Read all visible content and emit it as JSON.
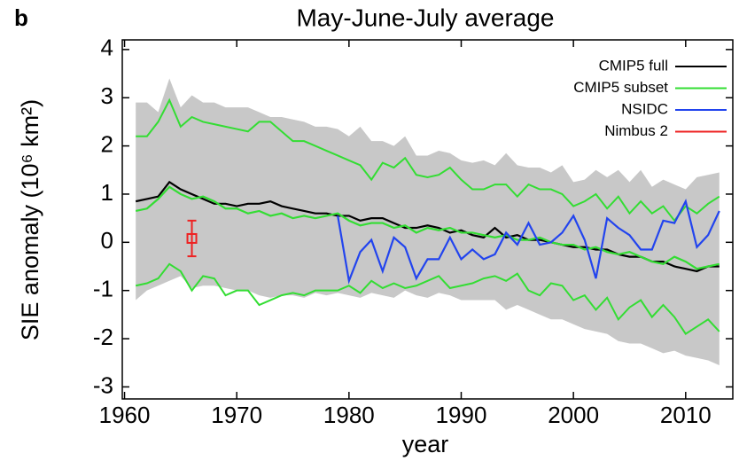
{
  "chart_data": {
    "type": "line",
    "panel_label": "b",
    "title": "May-June-July average",
    "xlabel": "year",
    "ylabel": "SIE anomaly (10⁶ km²)",
    "xlim": [
      1959.8,
      2014.2
    ],
    "ylim": [
      -3.25,
      4.2
    ],
    "xticks": [
      1960,
      1970,
      1980,
      1990,
      2000,
      2010
    ],
    "yticks": [
      -3,
      -2,
      -1,
      0,
      1,
      2,
      3,
      4
    ],
    "legend_position": "upper right",
    "x": [
      1961,
      1962,
      1963,
      1964,
      1965,
      1966,
      1967,
      1968,
      1969,
      1970,
      1971,
      1972,
      1973,
      1974,
      1975,
      1976,
      1977,
      1978,
      1979,
      1980,
      1981,
      1982,
      1983,
      1984,
      1985,
      1986,
      1987,
      1988,
      1989,
      1990,
      1991,
      1992,
      1993,
      1994,
      1995,
      1996,
      1997,
      1998,
      1999,
      2000,
      2001,
      2002,
      2003,
      2004,
      2005,
      2006,
      2007,
      2008,
      2009,
      2010,
      2011,
      2012,
      2013
    ],
    "band": {
      "color": "#c8c8c8",
      "upper": [
        2.9,
        2.9,
        2.7,
        3.4,
        2.8,
        3.05,
        2.9,
        2.9,
        2.8,
        2.8,
        2.8,
        2.7,
        2.6,
        2.6,
        2.55,
        2.5,
        2.4,
        2.4,
        2.35,
        2.2,
        2.4,
        2.1,
        2.1,
        2.0,
        2.2,
        1.8,
        1.8,
        1.9,
        1.85,
        1.7,
        1.65,
        1.7,
        1.6,
        1.85,
        1.6,
        1.55,
        1.55,
        1.45,
        1.6,
        1.25,
        1.3,
        1.5,
        1.35,
        1.5,
        1.25,
        1.5,
        1.15,
        1.3,
        1.2,
        1.1,
        1.35,
        1.4,
        1.45
      ],
      "lower": [
        -1.2,
        -1.0,
        -0.9,
        -0.8,
        -0.7,
        -0.95,
        -0.9,
        -0.9,
        -0.95,
        -1.0,
        -1.0,
        -1.1,
        -1.15,
        -1.1,
        -1.1,
        -1.15,
        -1.05,
        -1.1,
        -1.05,
        -1.1,
        -1.15,
        -1.05,
        -1.1,
        -1.15,
        -1.0,
        -1.1,
        -1.15,
        -1.05,
        -1.1,
        -1.2,
        -1.2,
        -1.2,
        -1.2,
        -1.4,
        -1.3,
        -1.4,
        -1.5,
        -1.6,
        -1.6,
        -1.7,
        -1.8,
        -1.85,
        -1.9,
        -2.05,
        -2.1,
        -2.1,
        -2.2,
        -2.3,
        -2.25,
        -2.35,
        -2.4,
        -2.45,
        -2.55
      ]
    },
    "subset_range": {
      "color": "#33dd33",
      "upper": [
        2.2,
        2.2,
        2.5,
        2.95,
        2.4,
        2.6,
        2.5,
        2.45,
        2.4,
        2.35,
        2.3,
        2.5,
        2.5,
        2.3,
        2.1,
        2.1,
        2.0,
        1.9,
        1.8,
        1.7,
        1.6,
        1.3,
        1.65,
        1.55,
        1.75,
        1.4,
        1.35,
        1.4,
        1.55,
        1.3,
        1.1,
        1.1,
        1.2,
        1.2,
        0.95,
        1.2,
        1.1,
        1.1,
        1.0,
        0.75,
        0.85,
        1.0,
        0.7,
        0.95,
        0.6,
        0.85,
        0.6,
        0.75,
        0.45,
        0.75,
        0.6,
        0.8,
        0.95
      ],
      "lower": [
        -0.9,
        -0.85,
        -0.75,
        -0.45,
        -0.6,
        -1.0,
        -0.7,
        -0.75,
        -1.1,
        -1.0,
        -1.0,
        -1.3,
        -1.2,
        -1.1,
        -1.05,
        -1.1,
        -1.0,
        -1.0,
        -1.0,
        -0.9,
        -1.05,
        -0.8,
        -0.95,
        -0.85,
        -0.95,
        -0.9,
        -0.8,
        -0.7,
        -0.95,
        -0.9,
        -0.85,
        -0.75,
        -0.7,
        -0.8,
        -0.65,
        -1.0,
        -1.1,
        -0.85,
        -0.9,
        -1.2,
        -1.1,
        -1.4,
        -1.15,
        -1.6,
        -1.35,
        -1.2,
        -1.55,
        -1.3,
        -1.55,
        -1.9,
        -1.75,
        -1.6,
        -1.85
      ]
    },
    "series": [
      {
        "name": "CMIP5 full",
        "color": "#000000",
        "values": [
          0.85,
          0.9,
          0.95,
          1.25,
          1.1,
          1.0,
          0.9,
          0.8,
          0.8,
          0.75,
          0.8,
          0.8,
          0.85,
          0.75,
          0.7,
          0.65,
          0.6,
          0.6,
          0.55,
          0.55,
          0.45,
          0.5,
          0.5,
          0.4,
          0.3,
          0.3,
          0.35,
          0.3,
          0.2,
          0.25,
          0.15,
          0.1,
          0.3,
          0.1,
          0.15,
          0.05,
          0.05,
          0.0,
          -0.05,
          -0.1,
          -0.1,
          -0.15,
          -0.15,
          -0.25,
          -0.3,
          -0.3,
          -0.4,
          -0.4,
          -0.5,
          -0.55,
          -0.6,
          -0.5,
          -0.5
        ]
      },
      {
        "name": "CMIP5 subset",
        "color": "#33dd33",
        "values": [
          0.65,
          0.7,
          0.9,
          1.15,
          1.0,
          0.9,
          0.95,
          0.85,
          0.7,
          0.7,
          0.6,
          0.65,
          0.55,
          0.6,
          0.5,
          0.55,
          0.5,
          0.55,
          0.6,
          0.45,
          0.35,
          0.4,
          0.4,
          0.3,
          0.35,
          0.2,
          0.3,
          0.25,
          0.3,
          0.2,
          0.2,
          0.15,
          0.1,
          0.15,
          0.05,
          0.05,
          0.1,
          0.0,
          -0.05,
          -0.05,
          -0.15,
          -0.1,
          -0.2,
          -0.25,
          -0.2,
          -0.3,
          -0.4,
          -0.45,
          -0.3,
          -0.4,
          -0.55,
          -0.5,
          -0.45
        ]
      },
      {
        "name": "NSIDC",
        "color": "#2244ee",
        "values": [
          null,
          null,
          null,
          null,
          null,
          null,
          null,
          null,
          null,
          null,
          null,
          null,
          null,
          null,
          null,
          null,
          null,
          null,
          0.55,
          -0.8,
          -0.2,
          0.05,
          -0.6,
          0.1,
          -0.1,
          -0.75,
          -0.35,
          -0.35,
          0.1,
          -0.35,
          -0.15,
          -0.35,
          -0.25,
          0.2,
          -0.05,
          0.4,
          -0.05,
          0.0,
          0.2,
          0.55,
          0.05,
          -0.75,
          0.5,
          0.3,
          0.15,
          -0.15,
          -0.15,
          0.45,
          0.4,
          0.85,
          -0.1,
          0.15,
          0.65
        ]
      },
      {
        "name": "Nimbus 2",
        "color": "#ee2222",
        "marker": "open-square",
        "x": [
          1966
        ],
        "values": [
          0.08
        ],
        "errors": [
          0.37
        ]
      }
    ]
  }
}
